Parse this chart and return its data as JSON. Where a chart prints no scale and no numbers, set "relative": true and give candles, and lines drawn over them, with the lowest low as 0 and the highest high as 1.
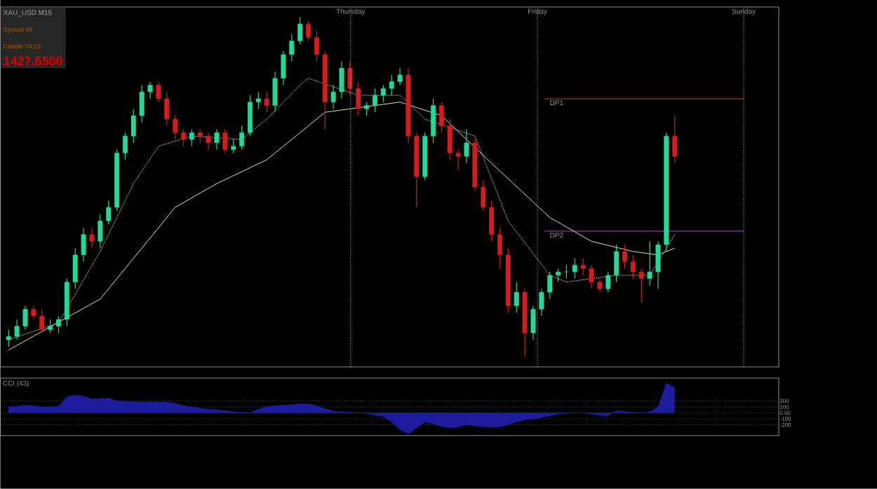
{
  "chart_data": [
    {
      "type": "candlestick",
      "relative": true,
      "categories": [
        null,
        null,
        null,
        null,
        null,
        null,
        null,
        null,
        null,
        null,
        null,
        null,
        null,
        null,
        null,
        null,
        null,
        null,
        null,
        null,
        null,
        null,
        null,
        null,
        null,
        null,
        null,
        null,
        null,
        null,
        null,
        null,
        null,
        null,
        null,
        null,
        null,
        null,
        null,
        null,
        null,
        null,
        null,
        null,
        null,
        null,
        null,
        null,
        null,
        null,
        null,
        null,
        null,
        null,
        null,
        null,
        null,
        null,
        null,
        null,
        null,
        null,
        null,
        null,
        null,
        null,
        null,
        null,
        null,
        null,
        null,
        null,
        null,
        null,
        null,
        null,
        null,
        null,
        null,
        null,
        null
      ],
      "ohlc": [
        [
          0.05,
          0.08,
          0.03,
          0.06
        ],
        [
          0.06,
          0.11,
          0.05,
          0.09
        ],
        [
          0.09,
          0.15,
          0.08,
          0.14
        ],
        [
          0.14,
          0.15,
          0.11,
          0.12
        ],
        [
          0.12,
          0.14,
          0.07,
          0.08
        ],
        [
          0.08,
          0.11,
          0.07,
          0.09
        ],
        [
          0.09,
          0.12,
          0.07,
          0.11
        ],
        [
          0.11,
          0.23,
          0.09,
          0.22
        ],
        [
          0.22,
          0.32,
          0.2,
          0.3
        ],
        [
          0.3,
          0.38,
          0.28,
          0.36
        ],
        [
          0.36,
          0.38,
          0.32,
          0.34
        ],
        [
          0.34,
          0.42,
          0.32,
          0.4
        ],
        [
          0.4,
          0.46,
          0.39,
          0.44
        ],
        [
          0.44,
          0.61,
          0.43,
          0.6
        ],
        [
          0.6,
          0.66,
          0.58,
          0.65
        ],
        [
          0.65,
          0.73,
          0.63,
          0.71
        ],
        [
          0.71,
          0.8,
          0.69,
          0.78
        ],
        [
          0.78,
          0.81,
          0.76,
          0.8
        ],
        [
          0.8,
          0.81,
          0.75,
          0.76
        ],
        [
          0.76,
          0.78,
          0.68,
          0.7
        ],
        [
          0.7,
          0.71,
          0.64,
          0.66
        ],
        [
          0.66,
          0.67,
          0.62,
          0.64
        ],
        [
          0.64,
          0.67,
          0.62,
          0.66
        ],
        [
          0.66,
          0.67,
          0.63,
          0.65
        ],
        [
          0.65,
          0.66,
          0.61,
          0.63
        ],
        [
          0.63,
          0.67,
          0.61,
          0.66
        ],
        [
          0.66,
          0.67,
          0.6,
          0.61
        ],
        [
          0.61,
          0.64,
          0.6,
          0.62
        ],
        [
          0.62,
          0.68,
          0.61,
          0.66
        ],
        [
          0.66,
          0.77,
          0.65,
          0.75
        ],
        [
          0.75,
          0.78,
          0.73,
          0.76
        ],
        [
          0.76,
          0.78,
          0.72,
          0.74
        ],
        [
          0.74,
          0.84,
          0.72,
          0.82
        ],
        [
          0.82,
          0.9,
          0.8,
          0.89
        ],
        [
          0.89,
          0.95,
          0.87,
          0.93
        ],
        [
          0.93,
          1,
          0.92,
          0.98
        ],
        [
          0.98,
          0.99,
          0.93,
          0.94
        ],
        [
          0.94,
          0.96,
          0.87,
          0.89
        ],
        [
          0.89,
          0.9,
          0.67,
          0.75
        ],
        [
          0.75,
          0.8,
          0.73,
          0.78
        ],
        [
          0.78,
          0.87,
          0.76,
          0.85
        ],
        [
          0.85,
          0.87,
          0.77,
          0.79
        ],
        [
          0.79,
          0.81,
          0.71,
          0.73
        ],
        [
          0.73,
          0.75,
          0.71,
          0.74
        ],
        [
          0.74,
          0.79,
          0.72,
          0.77
        ],
        [
          0.77,
          0.8,
          0.75,
          0.79
        ],
        [
          0.79,
          0.83,
          0.77,
          0.81
        ],
        [
          0.81,
          0.85,
          0.8,
          0.83
        ],
        [
          0.83,
          0.85,
          0.63,
          0.65
        ],
        [
          0.65,
          0.66,
          0.44,
          0.53
        ],
        [
          0.53,
          0.66,
          0.52,
          0.65
        ],
        [
          0.65,
          0.76,
          0.63,
          0.74
        ],
        [
          0.74,
          0.75,
          0.66,
          0.68
        ],
        [
          0.68,
          0.7,
          0.58,
          0.6
        ],
        [
          0.6,
          0.61,
          0.55,
          0.59
        ],
        [
          0.59,
          0.67,
          0.57,
          0.63
        ],
        [
          0.63,
          0.64,
          0.49,
          0.5
        ],
        [
          0.5,
          0.52,
          0.43,
          0.44
        ],
        [
          0.44,
          0.46,
          0.34,
          0.36
        ],
        [
          0.36,
          0.38,
          0.26,
          0.3
        ],
        [
          0.3,
          0.32,
          0.13,
          0.15
        ],
        [
          0.15,
          0.22,
          0.13,
          0.19
        ],
        [
          0.19,
          0.2,
          0,
          0.07
        ],
        [
          0.07,
          0.15,
          0.05,
          0.14
        ],
        [
          0.14,
          0.2,
          0.12,
          0.19
        ],
        [
          0.19,
          0.25,
          0.17,
          0.24
        ],
        [
          0.24,
          0.26,
          0.22,
          0.25
        ],
        [
          0.25,
          0.27,
          0.23,
          0.25
        ],
        [
          0.25,
          0.29,
          0.23,
          0.27
        ],
        [
          0.27,
          0.29,
          0.24,
          0.26
        ],
        [
          0.26,
          0.27,
          0.2,
          0.22
        ],
        [
          0.22,
          0.23,
          0.19,
          0.2
        ],
        [
          0.2,
          0.25,
          0.19,
          0.24
        ],
        [
          0.24,
          0.33,
          0.22,
          0.31
        ],
        [
          0.31,
          0.33,
          0.26,
          0.28
        ],
        [
          0.28,
          0.3,
          0.23,
          0.25
        ],
        [
          0.25,
          0.26,
          0.16,
          0.23
        ],
        [
          0.23,
          0.34,
          0.21,
          0.25
        ],
        [
          0.25,
          0.34,
          0.2,
          0.33
        ],
        [
          0.33,
          0.66,
          0.31,
          0.65
        ],
        [
          0.65,
          0.71,
          0.57,
          0.59
        ]
      ],
      "series": [
        {
          "type": "line",
          "color": "#e6dcb4",
          "values": [
            0.02,
            null,
            null,
            null,
            null,
            null,
            null,
            null,
            null,
            null,
            null,
            0.17,
            null,
            null,
            null,
            null,
            null,
            null,
            null,
            null,
            0.44,
            null,
            null,
            null,
            null,
            0.51,
            null,
            null,
            null,
            null,
            null,
            0.58,
            null,
            null,
            null,
            0.66,
            null,
            null,
            0.72,
            null,
            null,
            null,
            null,
            null,
            null,
            null,
            null,
            0.75,
            null,
            null,
            null,
            null,
            0.71,
            null,
            null,
            null,
            null,
            null,
            0.57,
            null,
            null,
            null,
            null,
            null,
            null,
            0.41,
            null,
            null,
            null,
            null,
            0.34,
            null,
            null,
            null,
            null,
            0.31,
            null,
            null,
            0.3,
            null,
            0.32
          ]
        },
        {
          "type": "line",
          "color": "#bdbdbd",
          "line_style": "dotted",
          "values": [
            0.05,
            null,
            null,
            null,
            null,
            null,
            0.1,
            null,
            null,
            null,
            null,
            0.31,
            null,
            null,
            null,
            0.51,
            null,
            null,
            0.62,
            null,
            null,
            null,
            0.65,
            null,
            null,
            null,
            null,
            null,
            0.64,
            null,
            null,
            0.7,
            null,
            null,
            null,
            0.8,
            0.82,
            null,
            null,
            null,
            null,
            null,
            0.77,
            null,
            null,
            null,
            null,
            0.77,
            null,
            null,
            0.7,
            null,
            null,
            null,
            null,
            null,
            0.65,
            null,
            null,
            null,
            0.4,
            null,
            null,
            null,
            null,
            0.24,
            null,
            0.22,
            null,
            null,
            null,
            null,
            null,
            0.24,
            null,
            null,
            null,
            0.24,
            0.28,
            null,
            0.36
          ]
        }
      ],
      "ref_lines": [
        {
          "axis": "y",
          "value": 0.76,
          "label": "DP1",
          "color": "#8b3a3a",
          "line_style": "solid"
        },
        {
          "axis": "y",
          "value": 0.37,
          "label": "DP2",
          "color": "#a030b0",
          "line_style": "solid"
        }
      ],
      "annotations": [
        "XAU_USD  M15",
        "Spread  48",
        "Candle  04:23",
        "1427.6500",
        "Thursday",
        "Friday",
        "Sunday"
      ]
    },
    {
      "type": "area",
      "title": "CCI (43)",
      "color": "#1c1c9c",
      "categories": [
        null,
        null,
        null,
        null,
        null,
        null,
        null,
        null,
        null,
        null,
        null,
        null,
        null,
        null,
        null,
        null,
        null,
        null,
        null,
        null,
        null,
        null,
        null,
        null,
        null,
        null,
        null,
        null,
        null,
        null,
        null,
        null,
        null,
        null,
        null,
        null,
        null,
        null,
        null,
        null,
        null,
        null,
        null,
        null,
        null,
        null,
        null,
        null,
        null,
        null,
        null,
        null,
        null,
        null,
        null,
        null,
        null,
        null,
        null,
        null,
        null,
        null,
        null,
        null,
        null,
        null,
        null,
        null,
        null,
        null,
        null,
        null,
        null,
        null,
        null,
        null,
        null,
        null,
        null,
        null,
        null
      ],
      "values": [
        100,
        110,
        130,
        120,
        100,
        100,
        110,
        270,
        300,
        280,
        230,
        240,
        250,
        200,
        190,
        190,
        180,
        180,
        180,
        180,
        160,
        120,
        100,
        80,
        60,
        50,
        40,
        20,
        10,
        0,
        60,
        110,
        120,
        130,
        140,
        150,
        150,
        120,
        70,
        30,
        20,
        10,
        0,
        -10,
        -40,
        -60,
        -150,
        -280,
        -350,
        -250,
        -150,
        -180,
        -230,
        -250,
        -240,
        -200,
        -220,
        -230,
        -240,
        -230,
        -200,
        -150,
        -120,
        -100,
        -80,
        -50,
        -20,
        -10,
        0,
        0,
        -20,
        -40,
        -50,
        40,
        20,
        10,
        0,
        20,
        100,
        500,
        420
      ],
      "ylim": [
        -380,
        580
      ],
      "yticks": [
        200,
        100,
        {
          "value": 0,
          "label": "0.00"
        },
        -100,
        -200
      ],
      "grid": "y"
    }
  ]
}
